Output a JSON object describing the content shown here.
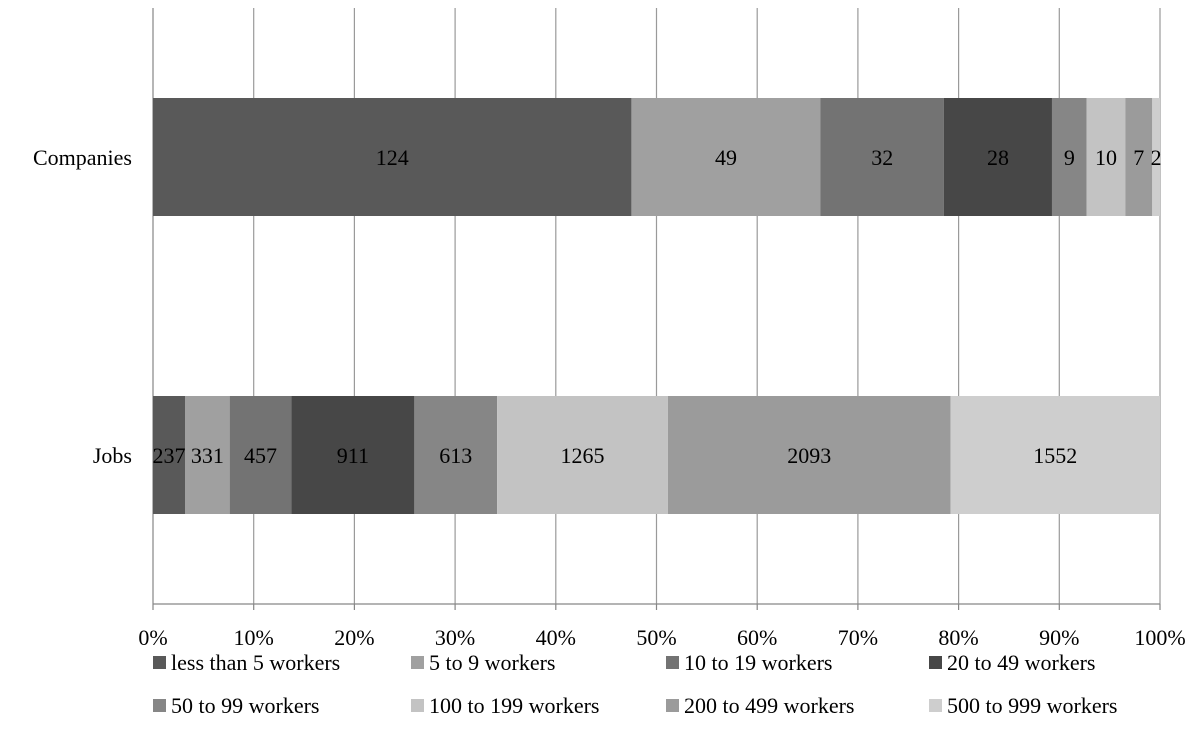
{
  "chart_data": {
    "type": "bar",
    "orientation": "horizontal",
    "stacked": "percent",
    "title": "",
    "xlabel": "",
    "ylabel": "",
    "categories": [
      "Companies",
      "Jobs"
    ],
    "xlim": [
      0,
      100
    ],
    "x_ticks": [
      "0%",
      "10%",
      "20%",
      "30%",
      "40%",
      "50%",
      "60%",
      "70%",
      "80%",
      "90%",
      "100%"
    ],
    "grid": "vertical",
    "legend_position": "bottom",
    "series": [
      {
        "name": "less than 5 workers",
        "color": "#595959",
        "values": [
          124,
          237
        ]
      },
      {
        "name": "5 to 9 workers",
        "color": "#a0a0a0",
        "values": [
          49,
          331
        ]
      },
      {
        "name": "10 to 19 workers",
        "color": "#737373",
        "values": [
          32,
          457
        ]
      },
      {
        "name": "20 to 49 workers",
        "color": "#474747",
        "values": [
          28,
          911
        ]
      },
      {
        "name": "50 to 99 workers",
        "color": "#868686",
        "values": [
          9,
          613
        ]
      },
      {
        "name": "100 to 199 workers",
        "color": "#c3c3c3",
        "values": [
          10,
          1265
        ]
      },
      {
        "name": "200 to 499 workers",
        "color": "#9b9b9b",
        "values": [
          7,
          2093
        ]
      },
      {
        "name": "500 to 999 workers",
        "color": "#cecece",
        "values": [
          2,
          1552
        ]
      }
    ]
  }
}
